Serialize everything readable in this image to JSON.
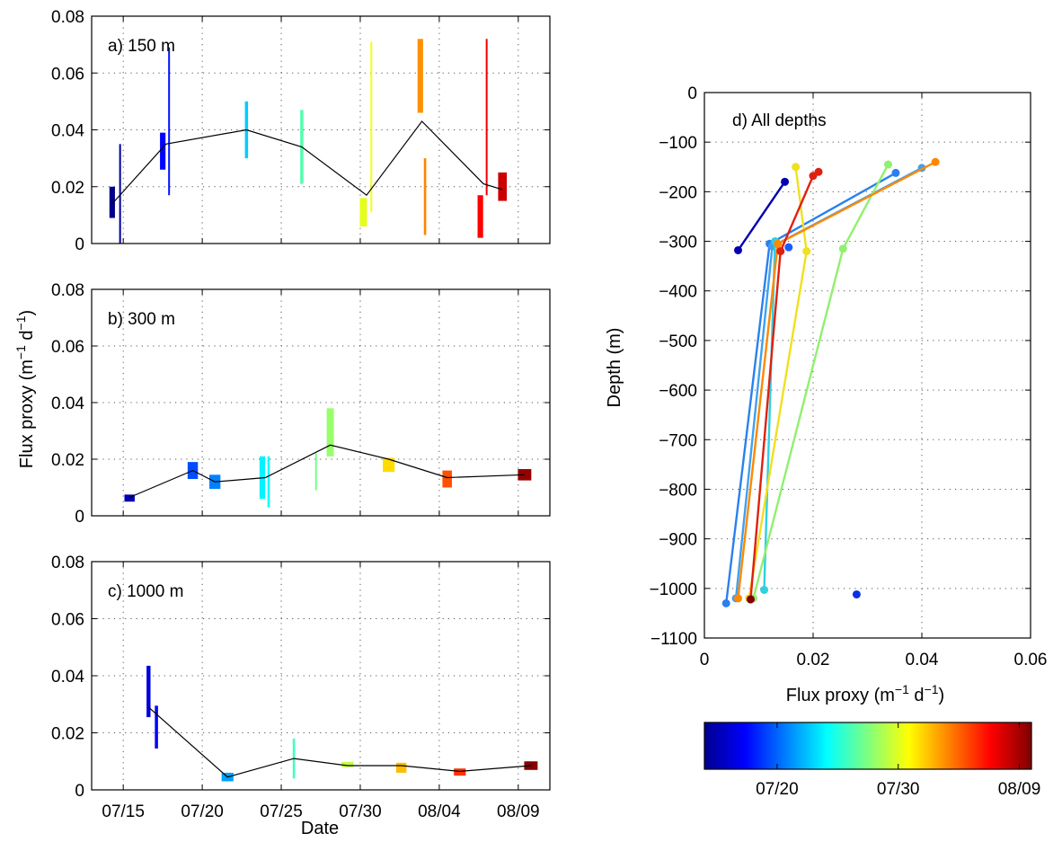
{
  "xlabel_date": "Date",
  "colorbar": {
    "ticks": [
      "07/20",
      "07/30",
      "08/09"
    ],
    "tick_days": [
      20,
      30,
      40
    ],
    "range_days": [
      14,
      41
    ],
    "colormap": "jet"
  },
  "chart_data": [
    {
      "type": "bar",
      "title": "a) 150 m",
      "xlabel": "",
      "ylabel": "",
      "xlim_days": [
        13,
        42
      ],
      "ylim": [
        0,
        0.08
      ],
      "yticks": [
        "0",
        "0.02",
        "0.04",
        "0.06",
        "0.08"
      ],
      "xticks": [
        "07/15",
        "07/20",
        "07/25",
        "07/30",
        "08/04",
        "08/09"
      ],
      "tick_days": [
        15,
        20,
        25,
        30,
        35,
        40
      ],
      "grid": true,
      "bars": [
        {
          "day": 14.3,
          "low": 0.009,
          "high": 0.02,
          "w": 0.35
        },
        {
          "day": 14.8,
          "low": 0.0,
          "high": 0.035,
          "w": 0.1
        },
        {
          "day": 17.5,
          "low": 0.026,
          "high": 0.039,
          "w": 0.35
        },
        {
          "day": 17.9,
          "low": 0.017,
          "high": 0.069,
          "w": 0.1
        },
        {
          "day": 22.8,
          "low": 0.03,
          "high": 0.05,
          "w": 0.2
        },
        {
          "day": 26.3,
          "low": 0.021,
          "high": 0.047,
          "w": 0.2
        },
        {
          "day": 30.2,
          "low": 0.006,
          "high": 0.016,
          "w": 0.45
        },
        {
          "day": 30.7,
          "low": 0.011,
          "high": 0.071,
          "w": 0.1
        },
        {
          "day": 33.8,
          "low": 0.046,
          "high": 0.072,
          "w": 0.35
        },
        {
          "day": 34.1,
          "low": 0.003,
          "high": 0.03,
          "w": 0.15
        },
        {
          "day": 37.6,
          "low": 0.002,
          "high": 0.017,
          "w": 0.35
        },
        {
          "day": 38.0,
          "low": 0.017,
          "high": 0.072,
          "w": 0.1
        },
        {
          "day": 39.0,
          "low": 0.015,
          "high": 0.025,
          "w": 0.55
        }
      ],
      "line": [
        [
          14.3,
          0.014
        ],
        [
          17.7,
          0.035
        ],
        [
          22.8,
          0.04
        ],
        [
          26.3,
          0.034
        ],
        [
          30.4,
          0.017
        ],
        [
          33.9,
          0.043
        ],
        [
          37.8,
          0.021
        ],
        [
          39.0,
          0.019
        ]
      ]
    },
    {
      "type": "bar",
      "title": "b) 300 m",
      "xlabel": "",
      "ylabel": "Flux proxy (m⁻¹ d⁻¹)",
      "xlim_days": [
        13,
        42
      ],
      "ylim": [
        0,
        0.08
      ],
      "yticks": [
        "0",
        "0.02",
        "0.04",
        "0.06",
        "0.08"
      ],
      "xticks": [
        "07/15",
        "07/20",
        "07/25",
        "07/30",
        "08/04",
        "08/09"
      ],
      "tick_days": [
        15,
        20,
        25,
        30,
        35,
        40
      ],
      "grid": true,
      "bars": [
        {
          "day": 15.4,
          "low": 0.005,
          "high": 0.0075,
          "w": 0.65
        },
        {
          "day": 19.4,
          "low": 0.013,
          "high": 0.019,
          "w": 0.65
        },
        {
          "day": 20.8,
          "low": 0.0095,
          "high": 0.0145,
          "w": 0.7
        },
        {
          "day": 23.8,
          "low": 0.006,
          "high": 0.021,
          "w": 0.35
        },
        {
          "day": 24.2,
          "low": 0.003,
          "high": 0.021,
          "w": 0.15
        },
        {
          "day": 27.2,
          "low": 0.009,
          "high": 0.022,
          "w": 0.08
        },
        {
          "day": 28.1,
          "low": 0.021,
          "high": 0.038,
          "w": 0.45
        },
        {
          "day": 31.8,
          "low": 0.0155,
          "high": 0.0205,
          "w": 0.75
        },
        {
          "day": 35.5,
          "low": 0.01,
          "high": 0.016,
          "w": 0.6
        },
        {
          "day": 40.4,
          "low": 0.0125,
          "high": 0.0165,
          "w": 0.85
        }
      ],
      "line": [
        [
          15.4,
          0.0065
        ],
        [
          19.4,
          0.016
        ],
        [
          20.8,
          0.012
        ],
        [
          24.0,
          0.0135
        ],
        [
          28.1,
          0.025
        ],
        [
          31.8,
          0.02
        ],
        [
          35.5,
          0.0135
        ],
        [
          40.4,
          0.0145
        ]
      ]
    },
    {
      "type": "bar",
      "title": "c) 1000 m",
      "xlabel": "Date",
      "ylabel": "",
      "xlim_days": [
        13,
        42
      ],
      "ylim": [
        0,
        0.08
      ],
      "yticks": [
        "0",
        "0.02",
        "0.04",
        "0.06",
        "0.08"
      ],
      "xticks": [
        "07/15",
        "07/20",
        "07/25",
        "07/30",
        "08/04",
        "08/09"
      ],
      "tick_days": [
        15,
        20,
        25,
        30,
        35,
        40
      ],
      "grid": true,
      "bars": [
        {
          "day": 16.6,
          "low": 0.0255,
          "high": 0.0435,
          "w": 0.25
        },
        {
          "day": 17.1,
          "low": 0.0145,
          "high": 0.0295,
          "w": 0.2
        },
        {
          "day": 21.6,
          "low": 0.003,
          "high": 0.006,
          "w": 0.75
        },
        {
          "day": 25.8,
          "low": 0.004,
          "high": 0.018,
          "w": 0.15
        },
        {
          "day": 29.2,
          "low": 0.008,
          "high": 0.0098,
          "w": 0.75
        },
        {
          "day": 32.6,
          "low": 0.006,
          "high": 0.0095,
          "w": 0.65
        },
        {
          "day": 36.3,
          "low": 0.005,
          "high": 0.0075,
          "w": 0.75
        },
        {
          "day": 40.8,
          "low": 0.007,
          "high": 0.01,
          "w": 0.85
        }
      ],
      "line": [
        [
          16.6,
          0.029
        ],
        [
          21.6,
          0.0045
        ],
        [
          25.8,
          0.011
        ],
        [
          29.2,
          0.0085
        ],
        [
          32.6,
          0.0085
        ],
        [
          36.3,
          0.0065
        ],
        [
          40.8,
          0.0085
        ]
      ]
    },
    {
      "type": "line",
      "title": "d) All depths",
      "xlabel": "Flux proxy (m⁻¹ d⁻¹)",
      "ylabel": "Depth (m)",
      "xlim": [
        0,
        0.06
      ],
      "ylim": [
        -1100,
        0
      ],
      "xticks": [
        "0",
        "0.02",
        "0.04",
        "0.06"
      ],
      "xtick_values": [
        0,
        0.02,
        0.04,
        0.06
      ],
      "yticks": [
        "0",
        "−100",
        "−200",
        "−300",
        "−400",
        "−500",
        "−600",
        "−700",
        "−800",
        "−900",
        "−1000",
        "−1100"
      ],
      "ytick_values": [
        0,
        -100,
        -200,
        -300,
        -400,
        -500,
        -600,
        -700,
        -800,
        -900,
        -1000,
        -1100
      ],
      "grid": true,
      "series": [
        {
          "color": "#0000b0",
          "points": [
            [
              0.0148,
              -180
            ],
            [
              0.0062,
              -318
            ]
          ]
        },
        {
          "color": "#1a5cff",
          "points": [
            [
              0.0155,
              -312
            ]
          ]
        },
        {
          "color": "#2a80f0",
          "points": [
            [
              0.0352,
              -162
            ],
            [
              0.012,
              -305
            ],
            [
              0.004,
              -1030
            ]
          ]
        },
        {
          "color": "#40a0f0",
          "points": [
            [
              0.04,
              -152
            ],
            [
              0.0125,
              -310
            ],
            [
              0.0058,
              -1020
            ]
          ]
        },
        {
          "color": "#30d0e0",
          "points": [
            [
              0.013,
              -300
            ],
            [
              0.011,
              -1003
            ]
          ]
        },
        {
          "color": "#90f070",
          "points": [
            [
              0.0338,
              -145
            ],
            [
              0.0255,
              -315
            ],
            [
              0.009,
              -1020
            ]
          ]
        },
        {
          "color": "#f0e020",
          "points": [
            [
              0.0168,
              -150
            ],
            [
              0.0188,
              -320
            ],
            [
              0.0082,
              -1020
            ]
          ]
        },
        {
          "color": "#ff8800",
          "points": [
            [
              0.0425,
              -140
            ],
            [
              0.0135,
              -305
            ],
            [
              0.0062,
              -1020
            ]
          ]
        },
        {
          "color": "#e02010",
          "points": [
            [
              0.021,
              -160
            ],
            [
              0.02,
              -168
            ],
            [
              0.014,
              -320
            ],
            [
              0.0085,
              -1022
            ]
          ]
        },
        {
          "color": "#800000",
          "points": [
            [
              0.0085,
              -1022
            ]
          ]
        },
        {
          "color": "#0a30e0",
          "points": [
            [
              0.028,
              -1012
            ]
          ]
        }
      ]
    }
  ]
}
